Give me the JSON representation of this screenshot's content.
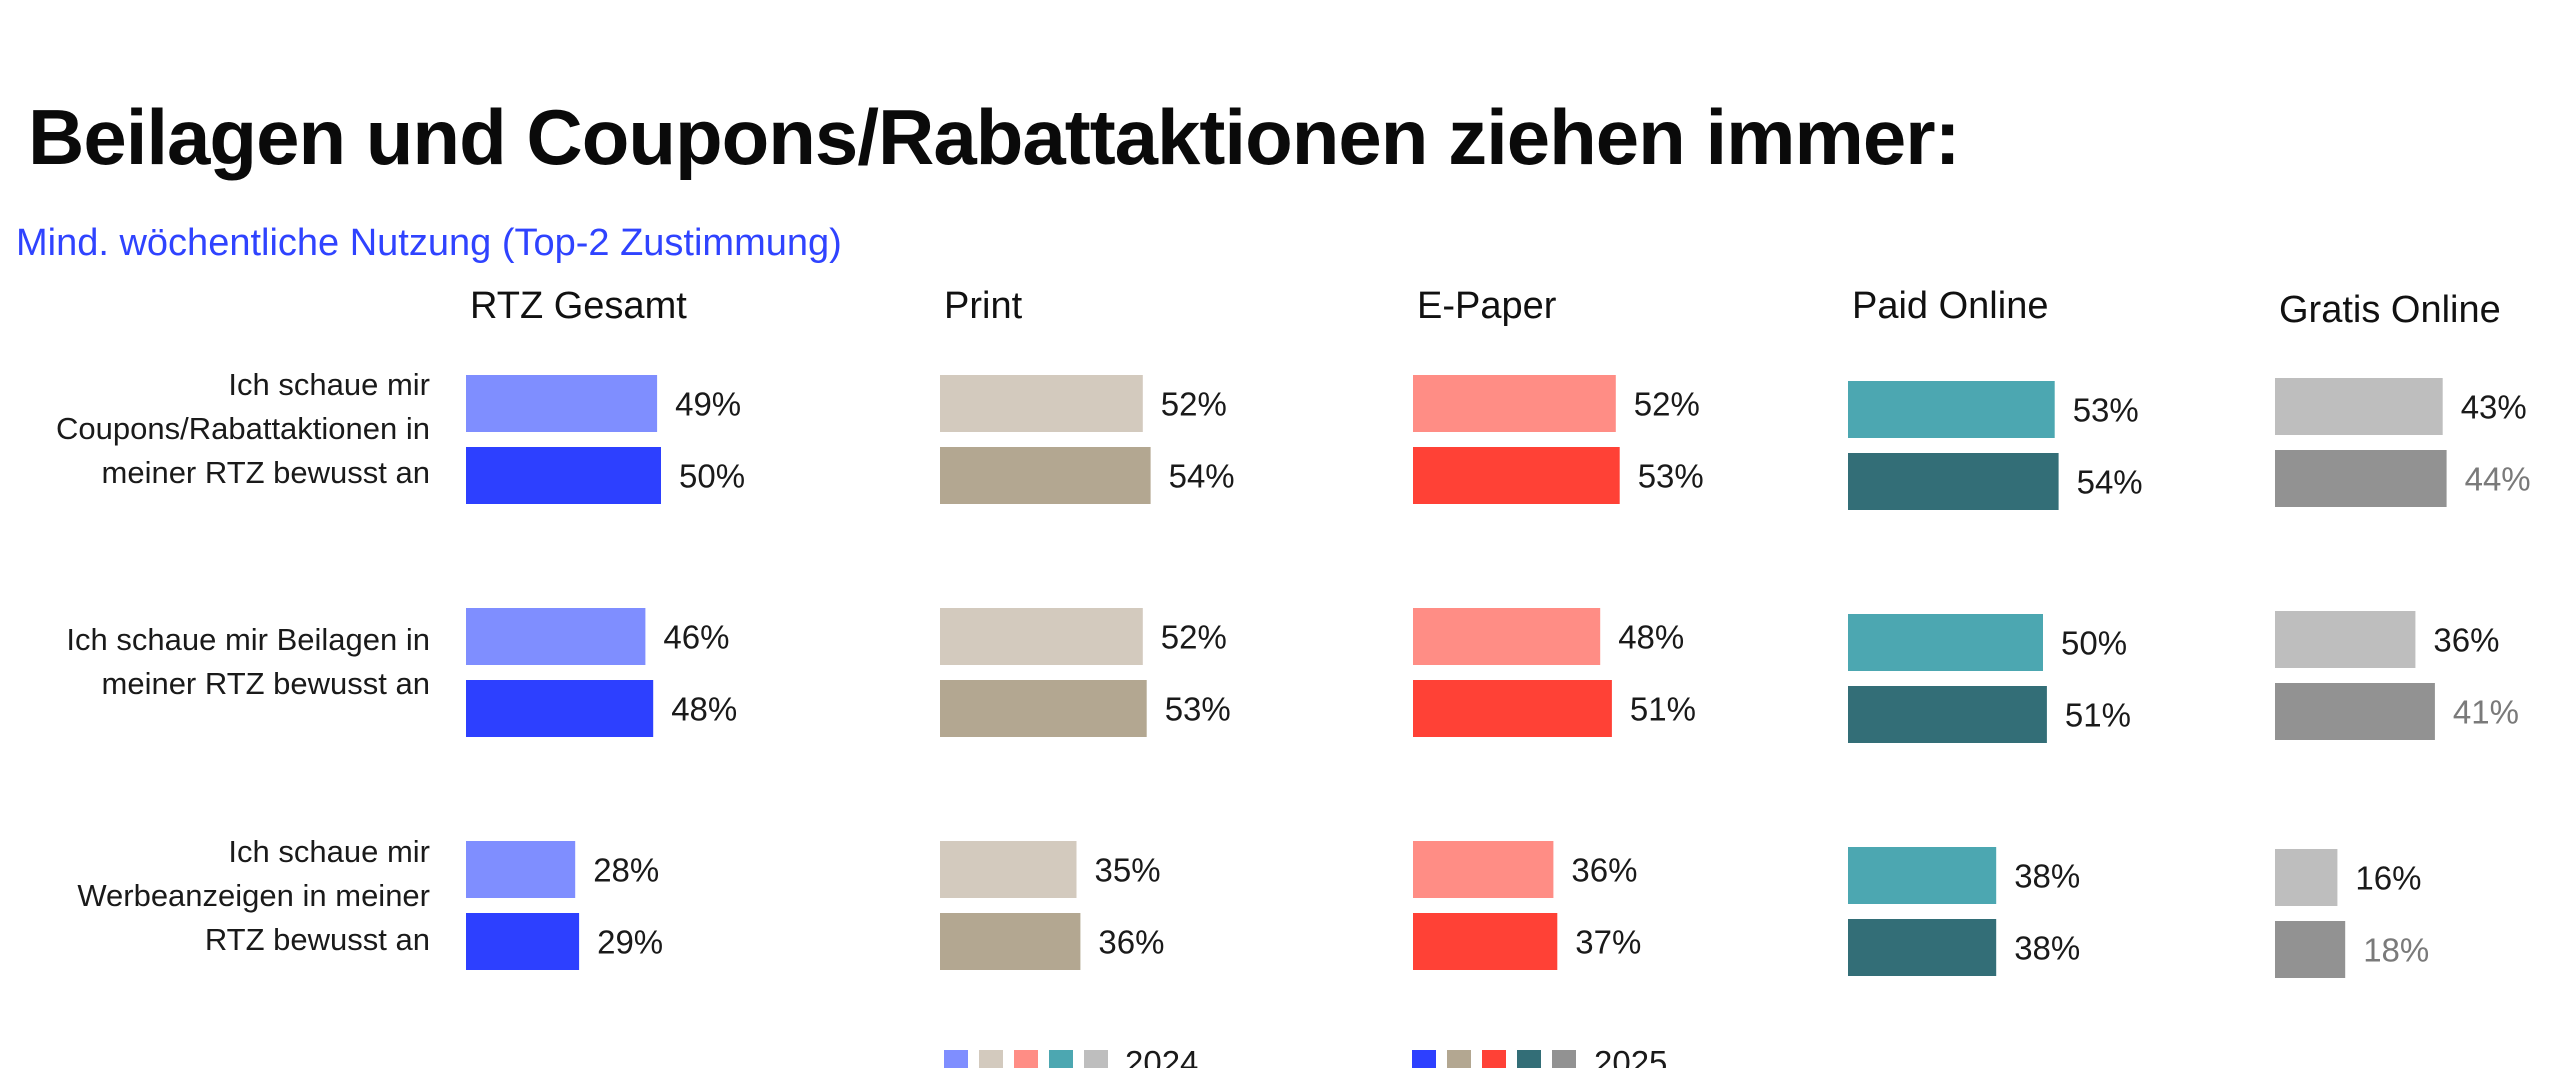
{
  "title": "Beilagen und Coupons/Rabattaktionen ziehen immer:",
  "subtitle": "Mind. wöchentliche Nutzung (Top-2 Zustimmung)",
  "chart_data": {
    "type": "bar",
    "orientation": "horizontal",
    "title": "Beilagen und Coupons/Rabattaktionen ziehen immer:",
    "subtitle": "Mind. wöchentliche Nutzung (Top-2 Zustimmung)",
    "unit": "%",
    "categories": [
      [
        "Ich schaue mir",
        "Coupons/Rabattaktionen in",
        "meiner RTZ bewusst an"
      ],
      [
        "Ich schaue mir Beilagen in",
        "meiner RTZ bewusst an"
      ],
      [
        "Ich schaue mir",
        "Werbeanzeigen in meiner",
        "RTZ bewusst an"
      ]
    ],
    "years": [
      "2024",
      "2025"
    ],
    "legend_position": "bottom",
    "grid": false,
    "panels": [
      {
        "name": "RTZ Gesamt",
        "colors": [
          "#7f8eff",
          "#2d40ff"
        ],
        "series": [
          {
            "name": "2024",
            "values": [
              49,
              46,
              28
            ]
          },
          {
            "name": "2025",
            "values": [
              50,
              48,
              29
            ]
          }
        ]
      },
      {
        "name": "Print",
        "colors": [
          "#d3cabe",
          "#b3a791"
        ],
        "series": [
          {
            "name": "2024",
            "values": [
              52,
              52,
              35
            ]
          },
          {
            "name": "2025",
            "values": [
              54,
              53,
              36
            ]
          }
        ]
      },
      {
        "name": "E-Paper",
        "colors": [
          "#ff8d85",
          "#ff4136"
        ],
        "series": [
          {
            "name": "2024",
            "values": [
              52,
              48,
              36
            ]
          },
          {
            "name": "2025",
            "values": [
              53,
              51,
              37
            ]
          }
        ]
      },
      {
        "name": "Paid Online",
        "colors": [
          "#4ca7b1",
          "#336e77"
        ],
        "series": [
          {
            "name": "2024",
            "values": [
              53,
              50,
              38
            ]
          },
          {
            "name": "2025",
            "values": [
              54,
              51,
              38
            ]
          }
        ]
      },
      {
        "name": "Gratis Online",
        "colors": [
          "#bebebe",
          "#929292"
        ],
        "series": [
          {
            "name": "2024",
            "values": [
              43,
              36,
              16
            ]
          },
          {
            "name": "2025",
            "values": [
              44,
              41,
              18
            ]
          }
        ]
      }
    ]
  }
}
